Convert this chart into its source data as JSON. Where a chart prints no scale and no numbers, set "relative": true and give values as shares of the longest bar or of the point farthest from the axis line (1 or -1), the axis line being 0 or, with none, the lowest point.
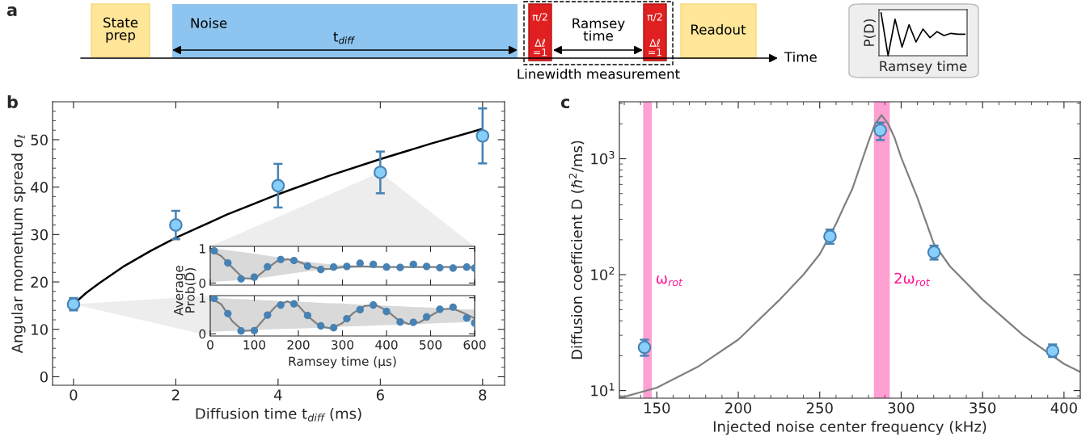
{
  "chart_data": [
    {
      "type": "other",
      "title": "a",
      "annotations": [
        "State\nprep",
        "Noise",
        "t$_{diff}$",
        "π/2",
        "Δℓ\n=1",
        "Ramsey\ntime",
        "π/2",
        "Δℓ\n=1",
        "Readout",
        "Time",
        "Linewidth measurement"
      ]
    },
    {
      "type": "line",
      "relative": true,
      "xlabel": "Ramsey time",
      "ylabel": "P(D)",
      "categories": [
        null,
        null,
        null,
        null,
        null,
        null,
        null,
        null,
        null,
        null,
        null,
        null,
        null
      ],
      "series": [
        {
          "color": "#000000",
          "values": [
            1,
            0,
            0.85,
            0.2,
            0.72,
            0.32,
            0.62,
            0.42,
            0.56,
            0.47,
            0.52,
            0.5,
            0.5
          ]
        }
      ]
    },
    {
      "type": "scatter",
      "title": "b",
      "xlabel": "Diffusion time t$_{diff}$ (ms)",
      "ylabel": "Angular momentum spread σ$_{ℓ}$",
      "xlim": [
        -0.41,
        8.43
      ],
      "ylim": [
        -1.8,
        58
      ],
      "xticks": [
        0,
        2,
        4,
        6,
        8
      ],
      "yticks": [
        0,
        10,
        20,
        30,
        40,
        50,
        {
          "value": 2,
          "label": null
        },
        {
          "value": 4,
          "label": null
        },
        {
          "value": 6,
          "label": null
        },
        {
          "value": 8,
          "label": null
        },
        {
          "value": 12,
          "label": null
        },
        {
          "value": 14,
          "label": null
        },
        {
          "value": 16,
          "label": null
        },
        {
          "value": 18,
          "label": null
        },
        {
          "value": 22,
          "label": null
        },
        {
          "value": 24,
          "label": null
        },
        {
          "value": 26,
          "label": null
        },
        {
          "value": 28,
          "label": null
        },
        {
          "value": 32,
          "label": null
        },
        {
          "value": 34,
          "label": null
        },
        {
          "value": 36,
          "label": null
        },
        {
          "value": 38,
          "label": null
        },
        {
          "value": 42,
          "label": null
        },
        {
          "value": 44,
          "label": null
        },
        {
          "value": 46,
          "label": null
        },
        {
          "value": 48,
          "label": null
        },
        {
          "value": 52,
          "label": null
        },
        {
          "value": 54,
          "label": null
        },
        {
          "value": 56,
          "label": null
        }
      ],
      "series": [
        {
          "type": "scatter",
          "marker": "circle",
          "color": "#87cefa",
          "x": [
            0,
            2,
            4,
            6,
            8
          ],
          "values": [
            15.3,
            32,
            40.3,
            43.1,
            50.8
          ],
          "errors": [
            [
              14.0,
              16.6
            ],
            [
              29,
              35
            ],
            [
              35.7,
              44.9
            ],
            [
              38.7,
              47.5
            ],
            [
              45,
              56.6
            ]
          ]
        },
        {
          "type": "line",
          "color": "#000000",
          "x": [
            0,
            0.25,
            0.5,
            1,
            1.5,
            2,
            3,
            4,
            5,
            6,
            7,
            8
          ],
          "values": [
            15.3,
            17.7,
            19.7,
            23.4,
            26.5,
            29.3,
            34.2,
            38.5,
            42.4,
            45.9,
            49.2,
            52.3
          ]
        }
      ]
    },
    {
      "type": "scatter",
      "xlim": [
        0,
        600
      ],
      "ylim": [
        -0.06,
        1.06
      ],
      "xticks": [
        0,
        100,
        200,
        300,
        400,
        500,
        600
      ],
      "yticks": [
        0,
        1
      ],
      "tick_labels": "y",
      "series": [
        {
          "type": "line",
          "color": "#808080",
          "x": [
            0,
            25,
            50,
            75,
            100,
            125,
            150,
            175,
            200,
            225,
            250,
            275,
            300,
            325,
            350,
            375,
            400,
            425,
            450,
            475,
            500,
            525,
            550,
            575,
            600
          ],
          "values": [
            0.95,
            0.78,
            0.45,
            0.14,
            0.12,
            0.38,
            0.62,
            0.69,
            0.62,
            0.49,
            0.4,
            0.41,
            0.46,
            0.48,
            0.48,
            0.47,
            0.46,
            0.46,
            0.46,
            0.46,
            0.46,
            0.46,
            0.46,
            0.46,
            0.46
          ],
          "upper": [
            1.0,
            0.97,
            0.93,
            0.89,
            0.85,
            0.8,
            0.75,
            0.7,
            0.65,
            0.61,
            0.57,
            0.54,
            0.52,
            0.5,
            0.49,
            0.48,
            0.48,
            0.47,
            0.47,
            0.47,
            0.47,
            0.47,
            0.47,
            0.47,
            0.47
          ],
          "lower": [
            0.03,
            0.05,
            0.07,
            0.1,
            0.13,
            0.17,
            0.21,
            0.26,
            0.3,
            0.34,
            0.37,
            0.4,
            0.42,
            0.43,
            0.44,
            0.45,
            0.45,
            0.45,
            0.45,
            0.45,
            0.45,
            0.45,
            0.45,
            0.45,
            0.45
          ]
        },
        {
          "type": "scatter",
          "marker": "circle",
          "color": "#4682b4",
          "x": [
            9,
            40,
            70,
            100,
            130,
            160,
            190,
            221,
            251,
            280,
            310,
            340,
            370,
            400,
            431,
            461,
            491,
            521,
            551,
            582,
            600
          ],
          "values": [
            0.93,
            0.58,
            0.12,
            0.17,
            0.47,
            0.68,
            0.65,
            0.49,
            0.39,
            0.46,
            0.48,
            0.57,
            0.54,
            0.46,
            0.45,
            0.54,
            0.48,
            0.44,
            0.43,
            0.46,
            0.43
          ]
        }
      ]
    },
    {
      "type": "scatter",
      "xlabel": "Ramsey time (µs)",
      "ylabel": "Average\nProb(D)",
      "xlim": [
        0,
        600
      ],
      "ylim": [
        -0.06,
        1.06
      ],
      "xticks": [
        0,
        100,
        200,
        300,
        400,
        500,
        600
      ],
      "yticks": [
        0,
        1
      ],
      "series": [
        {
          "type": "line",
          "color": "#808080",
          "x": [
            0,
            25,
            50,
            75,
            100,
            125,
            150,
            175,
            200,
            225,
            250,
            275,
            300,
            325,
            350,
            375,
            400,
            425,
            450,
            475,
            500,
            525,
            550,
            575,
            600
          ],
          "values": [
            1.0,
            0.82,
            0.35,
            0.08,
            0.1,
            0.45,
            0.78,
            0.9,
            0.78,
            0.45,
            0.2,
            0.15,
            0.3,
            0.58,
            0.77,
            0.8,
            0.65,
            0.4,
            0.27,
            0.32,
            0.5,
            0.68,
            0.7,
            0.58,
            0.43
          ],
          "upper": [
            1.0,
            0.99,
            0.97,
            0.96,
            0.95,
            0.93,
            0.92,
            0.9,
            0.89,
            0.88,
            0.86,
            0.85,
            0.84,
            0.82,
            0.81,
            0.79,
            0.78,
            0.77,
            0.75,
            0.74,
            0.73,
            0.71,
            0.7,
            0.68,
            0.67
          ],
          "lower": [
            0.06,
            0.07,
            0.08,
            0.09,
            0.11,
            0.12,
            0.13,
            0.14,
            0.15,
            0.16,
            0.17,
            0.18,
            0.2,
            0.21,
            0.22,
            0.23,
            0.24,
            0.25,
            0.26,
            0.27,
            0.29,
            0.3,
            0.31,
            0.32,
            0.33
          ]
        },
        {
          "type": "scatter",
          "marker": "circle",
          "color": "#4682b4",
          "x": [
            9,
            40,
            70,
            100,
            130,
            160,
            190,
            221,
            251,
            280,
            310,
            340,
            370,
            400,
            431,
            461,
            491,
            521,
            551,
            582,
            600
          ],
          "values": [
            0.98,
            0.56,
            0.08,
            0.09,
            0.52,
            0.8,
            0.83,
            0.51,
            0.22,
            0.17,
            0.42,
            0.67,
            0.8,
            0.62,
            0.33,
            0.32,
            0.47,
            0.68,
            0.74,
            0.44,
            0.3
          ]
        }
      ]
    },
    {
      "type": "scatter",
      "title": "c",
      "xlabel": "Injected noise center frequency (kHz)",
      "ylabel": "Diffusion coefficient D (ℏ$^{2}$/ms)",
      "log": "y",
      "xlim": [
        127,
        410
      ],
      "ylim": [
        8.6,
        3100
      ],
      "xticks": [
        150,
        200,
        250,
        300,
        350,
        400,
        {
          "value": 130,
          "label": null
        },
        {
          "value": 140,
          "label": null
        },
        {
          "value": 160,
          "label": null
        },
        {
          "value": 170,
          "label": null
        },
        {
          "value": 180,
          "label": null
        },
        {
          "value": 190,
          "label": null
        },
        {
          "value": 210,
          "label": null
        },
        {
          "value": 220,
          "label": null
        },
        {
          "value": 230,
          "label": null
        },
        {
          "value": 240,
          "label": null
        },
        {
          "value": 260,
          "label": null
        },
        {
          "value": 270,
          "label": null
        },
        {
          "value": 280,
          "label": null
        },
        {
          "value": 290,
          "label": null
        },
        {
          "value": 310,
          "label": null
        },
        {
          "value": 320,
          "label": null
        },
        {
          "value": 330,
          "label": null
        },
        {
          "value": 340,
          "label": null
        },
        {
          "value": 360,
          "label": null
        },
        {
          "value": 370,
          "label": null
        },
        {
          "value": 380,
          "label": null
        },
        {
          "value": 390,
          "label": null
        }
      ],
      "yticks": [
        {
          "value": 10,
          "label": "10$^{1}$"
        },
        {
          "value": 100,
          "label": "10$^{2}$"
        },
        {
          "value": 1000,
          "label": "10$^{3}$"
        },
        {
          "value": 9,
          "label": null
        },
        {
          "value": 20,
          "label": null
        },
        {
          "value": 30,
          "label": null
        },
        {
          "value": 40,
          "label": null
        },
        {
          "value": 50,
          "label": null
        },
        {
          "value": 60,
          "label": null
        },
        {
          "value": 70,
          "label": null
        },
        {
          "value": 80,
          "label": null
        },
        {
          "value": 90,
          "label": null
        },
        {
          "value": 200,
          "label": null
        },
        {
          "value": 300,
          "label": null
        },
        {
          "value": 400,
          "label": null
        },
        {
          "value": 500,
          "label": null
        },
        {
          "value": 600,
          "label": null
        },
        {
          "value": 700,
          "label": null
        },
        {
          "value": 800,
          "label": null
        },
        {
          "value": 900,
          "label": null
        },
        {
          "value": 2000,
          "label": null
        },
        {
          "value": 3000,
          "label": null
        }
      ],
      "bands": [
        {
          "axis": "x",
          "from": 142,
          "to": 146.5,
          "label": "ω$_{rot}$",
          "color": "#ff1493"
        },
        {
          "axis": "x",
          "from": 283.7,
          "to": 292.6,
          "label": "2ω$_{rot}$",
          "color": "#ff1493"
        }
      ],
      "series": [
        {
          "type": "line",
          "color": "#808080",
          "x": [
            127,
            150,
            175,
            200,
            225,
            240,
            250,
            260,
            265,
            270,
            275,
            280,
            284,
            288,
            292,
            296,
            300,
            310,
            320,
            330,
            350,
            375,
            400,
            410
          ],
          "values": [
            8.6,
            10.6,
            16,
            27.5,
            60,
            100,
            150,
            274,
            390,
            548,
            880,
            1410,
            2000,
            2380,
            2000,
            1510,
            1028,
            460,
            186,
            118,
            61,
            30,
            17,
            14.5
          ]
        },
        {
          "type": "scatter",
          "marker": "circle",
          "color": "#87cefa",
          "x": [
            142.4,
            256.3,
            287.2,
            320.2,
            393.0
          ],
          "values": [
            23.6,
            214,
            1760,
            156,
            22
          ],
          "errors": [
            [
              20,
              27.5
            ],
            [
              185,
              245
            ],
            [
              1450,
              2050
            ],
            [
              135,
              178
            ],
            [
              19.5,
              25
            ]
          ]
        }
      ]
    }
  ]
}
